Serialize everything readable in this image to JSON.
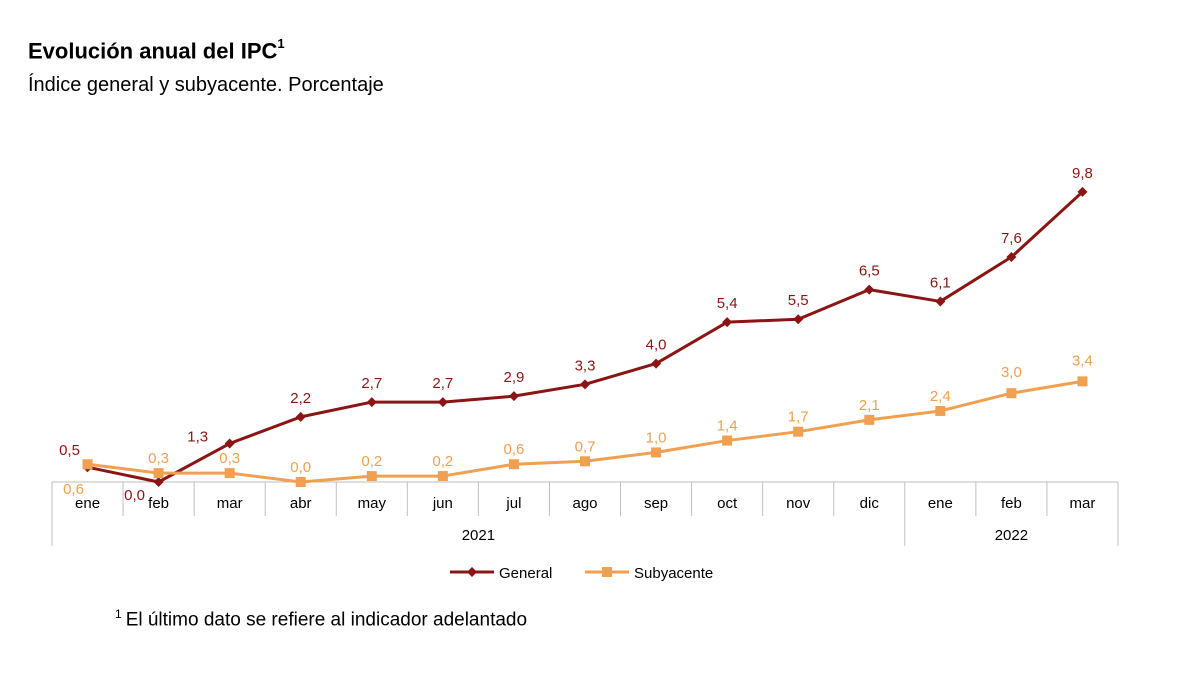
{
  "title": "Evolución anual del IPC",
  "title_sup": "1",
  "subtitle": "Índice general y subyacente. Porcentaje",
  "footnote_sup": "1",
  "footnote": "El último dato se refiere al indicador adelantado",
  "colors": {
    "general": "#8b1414",
    "subyacente": "#f0a050",
    "axis": "#bfbfbf"
  },
  "chart_data": {
    "type": "line",
    "title": "Evolución anual del IPC",
    "subtitle": "Índice general y subyacente. Porcentaje",
    "categories": [
      "ene",
      "feb",
      "mar",
      "abr",
      "may",
      "jun",
      "jul",
      "ago",
      "sep",
      "oct",
      "nov",
      "dic",
      "ene",
      "feb",
      "mar"
    ],
    "groups": [
      {
        "label": "2021",
        "start": 0,
        "end": 11
      },
      {
        "label": "2022",
        "start": 12,
        "end": 14
      }
    ],
    "series": [
      {
        "name": "General",
        "values": [
          0.5,
          0.0,
          1.3,
          2.2,
          2.7,
          2.7,
          2.9,
          3.3,
          4.0,
          5.4,
          5.5,
          6.5,
          6.1,
          7.6,
          9.8
        ],
        "labels": [
          "0,5",
          "0,0",
          "1,3",
          "2,2",
          "2,7",
          "2,7",
          "2,9",
          "3,3",
          "4,0",
          "5,4",
          "5,5",
          "6,5",
          "6,1",
          "7,6",
          "9,8"
        ]
      },
      {
        "name": "Subyacente",
        "values": [
          0.6,
          0.3,
          0.3,
          0.0,
          0.2,
          0.2,
          0.6,
          0.7,
          1.0,
          1.4,
          1.7,
          2.1,
          2.4,
          3.0,
          3.4
        ],
        "labels": [
          "0,6",
          "0,3",
          "0,3",
          "0,0",
          "0,2",
          "0,2",
          "0,6",
          "0,7",
          "1,0",
          "1,4",
          "1,7",
          "2,1",
          "2,4",
          "3,0",
          "3,4"
        ]
      }
    ],
    "ylim": [
      0,
      10
    ],
    "grid": false,
    "legend": "bottom"
  }
}
